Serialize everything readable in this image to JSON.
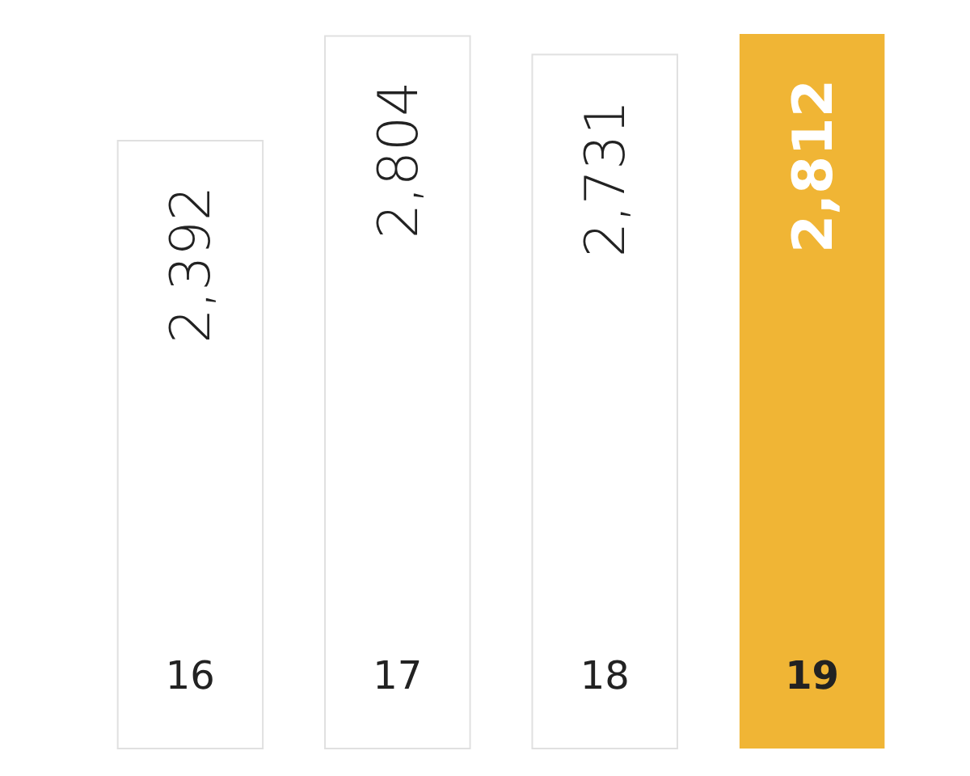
{
  "chart_data": {
    "type": "bar",
    "categories": [
      "16",
      "17",
      "18",
      "19"
    ],
    "values": [
      2392,
      2804,
      2731,
      2812
    ],
    "colors": [
      "#ffffff",
      "#ffffff",
      "#ffffff",
      "#f0b535"
    ],
    "value_labels": [
      "2,392",
      "2,804",
      "2,731",
      "2,812"
    ]
  }
}
